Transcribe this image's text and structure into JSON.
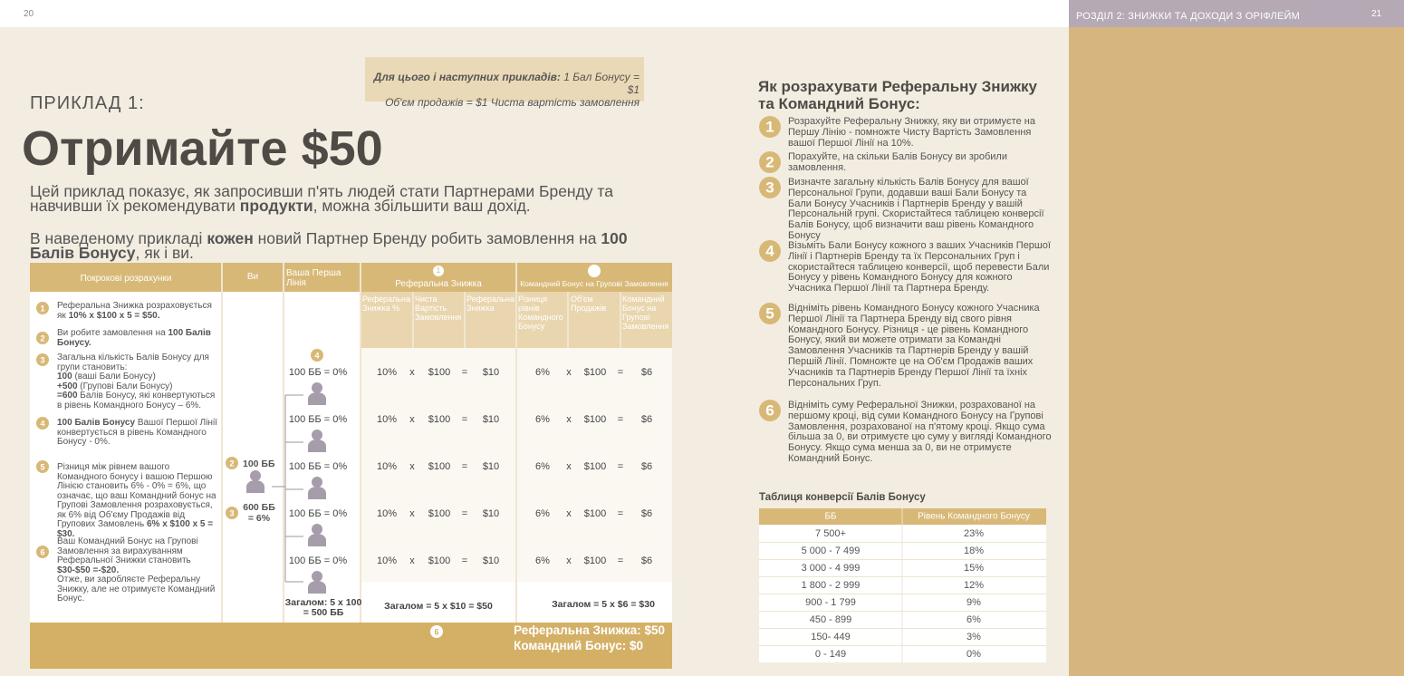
{
  "header": {
    "page_left": "20",
    "page_right": "21",
    "section": "РОЗДІЛ 2: ЗНИЖКИ ТА ДОХОДИ З ОРІФЛЕЙМ"
  },
  "note": {
    "lines": [
      [
        {
          "text": "Для цього і наступних прикладів:",
          "bold": true
        },
        {
          "text": "  1 Бал Бонусу = $1"
        }
      ],
      [
        {
          "text": "Об'єм продажів = $1 Чиста вартість замовлення"
        }
      ]
    ]
  },
  "example": {
    "label": "ПРИКЛАД 1:",
    "title": "Отримайте $50",
    "paragraphs": [
      [
        {
          "text": "Цей приклад показує, як запросивши п'ять людей стати Партнерами Бренду та навчивши їх рекомендувати "
        },
        {
          "text": "продукти",
          "bold": true
        },
        {
          "text": ", можна збільшити ваш дохід."
        }
      ],
      [
        {
          "text": "В наведеному прикладі "
        },
        {
          "text": "кожен",
          "bold": true
        },
        {
          "text": " новий Партнер Бренду робить замовлення на "
        },
        {
          "text": "100 Балів Бонусу",
          "bold": true
        },
        {
          "text": ", як і ви."
        }
      ]
    ]
  },
  "table": {
    "col_steps": "Покрокові розрахунки",
    "col_you": "Ви",
    "col_first_line": "Ваша Перша Лінія",
    "referral": {
      "num": "1",
      "title": "Реферальна Знижка",
      "subheaders": [
        "Реферальна Знижка %",
        "Чиста Вартість Замовлення",
        "Реферальна Знижка"
      ]
    },
    "team": {
      "title": "Командний Бонус на Групові Замовлення",
      "subheaders": [
        "Різниця рівнів Командного Бонусу",
        "Об'єм Продажів",
        "Командний Бонус на Групові Замовлення"
      ]
    },
    "steps": [
      {
        "num": "1",
        "lines": [
          [
            {
              "text": "Реферальна Знижка розраховується як "
            },
            {
              "text": "10% x $100 x 5 = $50.",
              "bold": true
            }
          ]
        ]
      },
      {
        "num": "2",
        "lines": [
          [
            {
              "text": "Ви робите замовлення на "
            },
            {
              "text": "100 Балів Бонусу.",
              "bold": true
            }
          ]
        ]
      },
      {
        "num": "3",
        "lines": [
          [
            {
              "text": "Загальна кількість Балів Бонусу для групи становить:"
            }
          ],
          [
            {
              "text": "100",
              "bold": true
            },
            {
              "text": " (ваші Бали Бонусу)"
            }
          ],
          [
            {
              "text": "+500",
              "bold": true
            },
            {
              "text": " (Групові Бали Бонусу)"
            }
          ],
          [
            {
              "text": "=600",
              "bold": true
            },
            {
              "text": " Балів Бонусу, які конвертуються в рівень Командного Бонусу – 6%."
            }
          ]
        ]
      },
      {
        "num": "4",
        "lines": [
          [
            {
              "text": "100 Балів Бонусу",
              "bold": true
            },
            {
              "text": " Вашої Першої Лінії конвертується в рівень Командного Бонусу - 0%."
            }
          ]
        ]
      },
      {
        "num": "5",
        "lines": [
          [
            {
              "text": "Різниця між рівнем вашого Командного бонусу і вашою Першою Лінією становить  6% - 0% = 6%, що означає, що ваш Командний бонус на Групові Замовлення розраховується, як 6% від Об'єму Продажів від Групових Замовлень  "
            },
            {
              "text": "6% x $100 x 5 = $30.",
              "bold": true
            }
          ]
        ]
      },
      {
        "num": "6",
        "lines": [
          [
            {
              "text": "Ваш Командний Бонус на Групові Замовлення за вирахуванням Реферальної Знижки становить "
            },
            {
              "text": "$30-$50 =-$20.",
              "bold": true
            }
          ],
          [
            {
              "text": "Отже, ви заробляєте Реферальну Знижку, але не отримуєте Командний Бонус."
            }
          ]
        ]
      }
    ],
    "you": {
      "marks": [
        "2",
        "3"
      ],
      "points": "100 ББ",
      "group": "600 ББ = 6%"
    },
    "first_line_mark": "4",
    "rows": [
      {
        "line": "100 ББ = 0%",
        "cells": [
          "10%",
          "x",
          "$100",
          "=",
          "$10",
          "6%",
          "x",
          "$100",
          "=",
          "$6"
        ]
      },
      {
        "line": "100 ББ = 0%",
        "cells": [
          "10%",
          "x",
          "$100",
          "=",
          "$10",
          "6%",
          "x",
          "$100",
          "=",
          "$6"
        ]
      },
      {
        "line": "100 ББ = 0%",
        "cells": [
          "10%",
          "x",
          "$100",
          "=",
          "$10",
          "6%",
          "x",
          "$100",
          "=",
          "$6"
        ]
      },
      {
        "line": "100 ББ = 0%",
        "cells": [
          "10%",
          "x",
          "$100",
          "=",
          "$10",
          "6%",
          "x",
          "$100",
          "=",
          "$6"
        ]
      },
      {
        "line": "100 ББ = 0%",
        "cells": [
          "10%",
          "x",
          "$100",
          "=",
          "$10",
          "6%",
          "x",
          "$100",
          "=",
          "$6"
        ]
      }
    ],
    "totals": [
      "Загалом: 5 x 100 = 500 ББ",
      "Загалом = 5 x $10 = $50",
      "Загалом = 5 x $6 = $30"
    ],
    "result": {
      "mark": "6",
      "referral": "Реферальна Знижка:  $50",
      "team": "Командний Бонус: $0"
    }
  },
  "guide": {
    "title": "Як розрахувати Реферальну Знижку та Командний Бонус:",
    "steps": [
      {
        "num": "1",
        "text": "Розрахуйте Реферальну Знижку,  яку ви отримуєте на Першу Лінію - помножте Чисту Вартість Замовлення вашої Першої Лінії на 10%."
      },
      {
        "num": "2",
        "text": "Порахуйте, на скільки Балів Бонусу ви зробили замовлення."
      },
      {
        "num": "3",
        "text": "Визначте загальну кількість Балів Бонусу для вашої Персональної Групи, додавши ваші Бали Бонусу та Бали Бонусу Учасників і Партнерів Бренду у вашій Персональній групі. Скористайтеся таблицею конверсії Балів Бонусу, щоб визначити ваш рівень Командного Бонусу"
      },
      {
        "num": "4",
        "text": "Візьміть Бали Бонусу кожного з ваших Учасників Першої Лінії і Партнерів Бренду та їх Персональних Груп і скористайтеся таблицею конверсії, щоб перевести Бали Бонусу у рівень Командного Бонусу для кожного Учасника  Першої Лінії та Партнера Бренду."
      },
      {
        "num": "5",
        "text": "Відніміть рівень Командного Бонусу кожного Учасника Першої Лінії та Партнера Бренду від свого рівня Командного Бонусу. Різниця - це рівень Командного Бонусу, який ви можете отримати за Командні Замовлення Учасників та Партнерів Бренду у вашій Першій Лінії. Помножте це на Об'єм Продажів ваших Учасників та Партнерів Бренду Першої Лінії та їхніх Персональних Груп."
      },
      {
        "num": "6",
        "text": "Відніміть суму Реферальної Знижки, розрахованої на першому кроці, від суми Командного Бонусу на Групові Замовлення, розрахованої на п'ятому кроці. Якщо сума більша за 0, ви отримуєте цю суму у вигляді Командного Бонусу. Якщо сума менша за 0, ви не отримуєте Командний Бонус."
      }
    ]
  },
  "conversion": {
    "title": "Таблиця конверсії Балів Бонусу",
    "headers": [
      "ББ",
      "Рівень Командного Бонусу"
    ],
    "rows": [
      [
        "7 500+",
        "23%"
      ],
      [
        "5 000 - 7 499",
        "18%"
      ],
      [
        "3 000 - 4 999",
        "15%"
      ],
      [
        "1 800 - 2 999",
        "12%"
      ],
      [
        "900 - 1 799",
        "9%"
      ],
      [
        "450 - 899",
        "6%"
      ],
      [
        "150- 449",
        "3%"
      ],
      [
        "0 - 149",
        "0%"
      ]
    ]
  }
}
